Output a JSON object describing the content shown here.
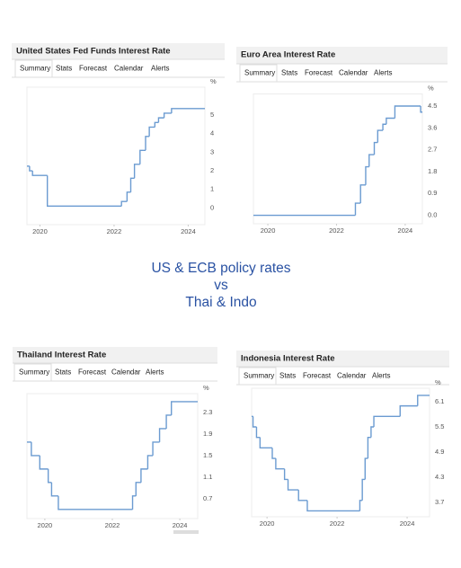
{
  "caption": [
    "US & ECB policy rates",
    "vs",
    "Thai & Indo"
  ],
  "chart_data": [
    {
      "type": "line",
      "step": true,
      "title": "United States Fed Funds Interest Rate",
      "tabs": [
        "Summary",
        "Stats",
        "Forecast",
        "Calendar",
        "Alerts"
      ],
      "unit": "%",
      "color": "#6b9bd1",
      "grid": false,
      "x": [
        2019.65,
        2019.72,
        2019.8,
        2020.2,
        2022.2,
        2022.35,
        2022.45,
        2022.55,
        2022.7,
        2022.85,
        2022.95,
        2023.1,
        2023.2,
        2023.35,
        2023.55,
        2024.45
      ],
      "values": [
        2.25,
        2.0,
        1.75,
        0.1,
        0.35,
        0.85,
        1.6,
        2.35,
        3.1,
        3.85,
        4.35,
        4.6,
        4.85,
        5.1,
        5.35,
        5.35
      ],
      "xlim": [
        2019.65,
        2024.45
      ],
      "ylim": [
        -0.9,
        6.5
      ],
      "xticks": [
        2020,
        2022,
        2024
      ],
      "yticks": [
        0,
        1,
        2,
        3,
        4,
        5
      ]
    },
    {
      "type": "line",
      "step": true,
      "title": "Euro Area Interest Rate",
      "tabs": [
        "Summary",
        "Stats",
        "Forecast",
        "Calendar",
        "Alerts"
      ],
      "unit": "%",
      "color": "#6b9bd1",
      "grid": false,
      "x": [
        2019.58,
        2022.55,
        2022.7,
        2022.85,
        2022.95,
        2023.1,
        2023.2,
        2023.35,
        2023.45,
        2023.7,
        2024.45,
        2024.5
      ],
      "values": [
        0,
        0.5,
        1.25,
        2.0,
        2.5,
        3.0,
        3.5,
        3.75,
        4.0,
        4.5,
        4.25,
        4.25
      ],
      "xlim": [
        2019.58,
        2024.5
      ],
      "ylim": [
        -0.35,
        5.0
      ],
      "xticks": [
        2020,
        2022,
        2024
      ],
      "yticks": [
        {
          "value": 0,
          "label": "0.0"
        },
        0.9,
        1.8,
        2.7,
        3.6,
        4.5
      ]
    },
    {
      "type": "line",
      "step": true,
      "title": "Thailand Interest Rate",
      "tabs": [
        "Summary",
        "Stats",
        "Forecast",
        "Calendar",
        "Alerts"
      ],
      "unit": "%",
      "color": "#6b9bd1",
      "grid": false,
      "x": [
        2019.47,
        2019.6,
        2019.85,
        2020.1,
        2020.2,
        2020.4,
        2022.6,
        2022.7,
        2022.85,
        2023.05,
        2023.2,
        2023.4,
        2023.6,
        2023.75,
        2024.53
      ],
      "values": [
        1.75,
        1.5,
        1.25,
        1.0,
        0.75,
        0.5,
        0.75,
        1.0,
        1.25,
        1.5,
        1.75,
        2.0,
        2.25,
        2.5,
        2.5
      ],
      "xlim": [
        2019.47,
        2024.53
      ],
      "ylim": [
        0.33,
        2.65
      ],
      "xticks": [
        2020,
        2022,
        2024
      ],
      "yticks": [
        0.7,
        1.1,
        1.5,
        1.9,
        2.3
      ]
    },
    {
      "type": "line",
      "step": true,
      "title": "Indonesia Interest Rate",
      "tabs": [
        "Summary",
        "Stats",
        "Forecast",
        "Calendar",
        "Alerts"
      ],
      "unit": "%",
      "color": "#6b9bd1",
      "grid": false,
      "x": [
        2019.56,
        2019.6,
        2019.7,
        2019.8,
        2020.15,
        2020.25,
        2020.5,
        2020.6,
        2020.9,
        2021.15,
        2022.65,
        2022.72,
        2022.8,
        2022.88,
        2022.97,
        2023.05,
        2023.8,
        2024.3,
        2024.64
      ],
      "values": [
        5.75,
        5.5,
        5.25,
        5.0,
        4.75,
        4.5,
        4.25,
        4.0,
        3.75,
        3.5,
        3.75,
        4.25,
        4.75,
        5.25,
        5.5,
        5.75,
        6.0,
        6.25,
        6.25
      ],
      "xlim": [
        2019.56,
        2024.64
      ],
      "ylim": [
        3.36,
        6.42
      ],
      "xticks": [
        2020,
        2022,
        2024
      ],
      "yticks": [
        3.7,
        4.3,
        4.9,
        5.5,
        6.1
      ]
    }
  ]
}
